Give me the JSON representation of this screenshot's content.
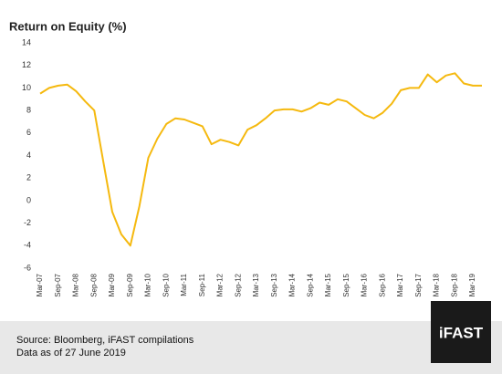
{
  "chart_data": {
    "type": "line",
    "title": "Return on Equity (%)",
    "categories": [
      "Mar-07",
      null,
      "Sep-07",
      null,
      "Mar-08",
      null,
      "Sep-08",
      null,
      "Mar-09",
      null,
      "Sep-09",
      null,
      "Mar-10",
      null,
      "Sep-10",
      null,
      "Mar-11",
      null,
      "Sep-11",
      null,
      "Mar-12",
      null,
      "Sep-12",
      null,
      "Mar-13",
      null,
      "Sep-13",
      null,
      "Mar-14",
      null,
      "Sep-14",
      null,
      "Mar-15",
      null,
      "Sep-15",
      null,
      "Mar-16",
      null,
      "Sep-16",
      null,
      "Mar-17",
      null,
      "Sep-17",
      null,
      "Mar-18",
      null,
      "Sep-18",
      null,
      "Mar-19",
      null
    ],
    "series": [
      {
        "name": "Return on Equity",
        "color": "#f5b90f",
        "values": [
          9.5,
          10.0,
          10.2,
          10.3,
          9.7,
          8.8,
          8.0,
          3.5,
          -1.0,
          -3.0,
          -4.0,
          -0.5,
          3.8,
          5.5,
          6.8,
          7.3,
          7.2,
          6.9,
          6.6,
          5.0,
          5.4,
          5.2,
          4.9,
          6.3,
          6.7,
          7.3,
          8.0,
          8.1,
          8.1,
          7.9,
          8.2,
          8.7,
          8.5,
          9.0,
          8.8,
          8.2,
          7.6,
          7.3,
          7.8,
          8.6,
          9.8,
          10.0,
          10.0,
          11.2,
          10.5,
          11.1,
          11.3,
          10.4,
          10.2,
          10.2
        ]
      }
    ],
    "ylim": [
      -6,
      14
    ],
    "yticks": [
      -6,
      -4,
      -2,
      0,
      2,
      4,
      6,
      8,
      10,
      12,
      14
    ],
    "grid": false
  },
  "footer": {
    "source": "Source: Bloomberg, iFAST compilations",
    "note": "Data as of 27 June 2019",
    "logo": "iFAST"
  }
}
